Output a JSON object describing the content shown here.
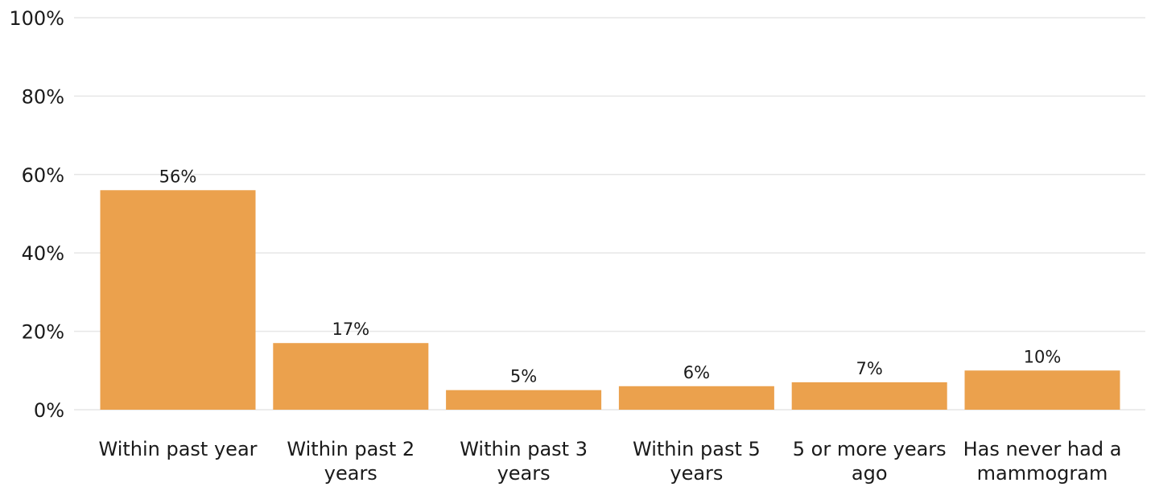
{
  "chart_data": {
    "type": "bar",
    "title": "",
    "xlabel": "",
    "ylabel": "",
    "categories": [
      "Within past year",
      "Within past 2 years",
      "Within past 3 years",
      "Within past 5 years",
      "5 or more years ago",
      "Has never had a mammogram"
    ],
    "category_lines": [
      [
        "Within past year"
      ],
      [
        "Within past 2",
        "years"
      ],
      [
        "Within past 3",
        "years"
      ],
      [
        "Within past 5",
        "years"
      ],
      [
        "5 or more years",
        "ago"
      ],
      [
        "Has never had a",
        "mammogram"
      ]
    ],
    "values": [
      56,
      17,
      5,
      6,
      7,
      10
    ],
    "value_labels": [
      "56%",
      "17%",
      "5%",
      "6%",
      "7%",
      "10%"
    ],
    "ylim": [
      0,
      100
    ],
    "yticks": [
      0,
      20,
      40,
      60,
      80,
      100
    ],
    "ytick_labels": [
      "0%",
      "20%",
      "40%",
      "60%",
      "80%",
      "100%"
    ],
    "grid": true,
    "legend": "none",
    "bar_color": "#eba14d"
  }
}
